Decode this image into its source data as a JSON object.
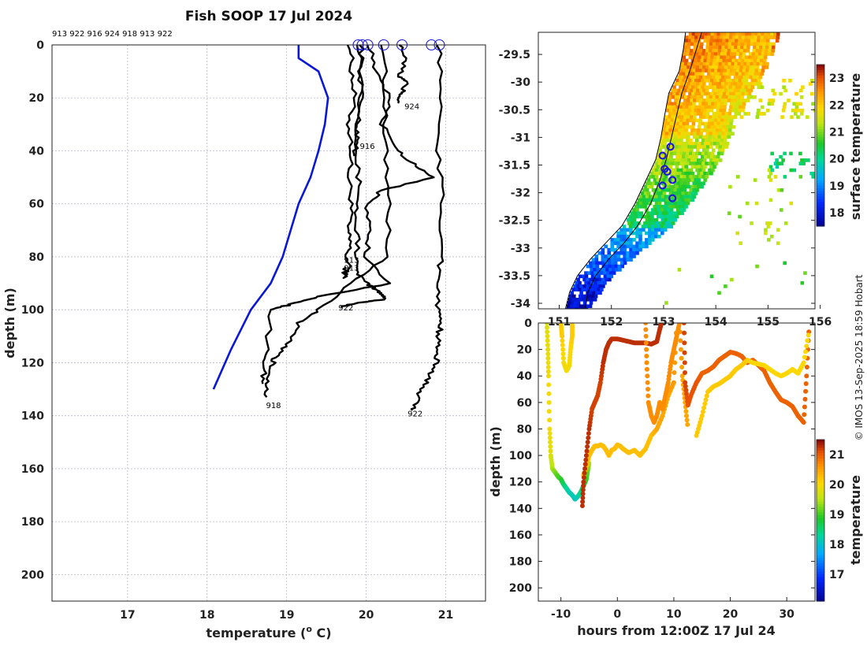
{
  "title": "Fish SOOP 17 Jul 2024",
  "credit": "© IMOS 13-Sep-2025 18:59 Hobart",
  "colors": {
    "clim": "#0a17d6",
    "profile": "#000000",
    "marker": "#1a1ad8",
    "coast": "#000000"
  },
  "chart_data": [
    {
      "id": "profiles",
      "type": "line",
      "xlabel": "temperature (",
      "xlabel_sup": "o",
      "xlabel_end": " C)",
      "ylabel": "depth (m)",
      "xlim": [
        16.05,
        21.5
      ],
      "ylim": [
        210,
        0
      ],
      "xticks": [
        "17",
        "18",
        "19",
        "20",
        "21"
      ],
      "yticks": [
        "0",
        "20",
        "40",
        "60",
        "80",
        "100",
        "120",
        "140",
        "160",
        "180",
        "200"
      ],
      "grid": true,
      "top_labels": "913 922 916 924 918 913 922",
      "climatology": {
        "temp": [
          19.15,
          19.15,
          19.4,
          19.52,
          19.48,
          19.4,
          19.3,
          19.15,
          19.05,
          18.95,
          18.8,
          18.55,
          18.3,
          18.08
        ],
        "depth": [
          0,
          5,
          10,
          20,
          30,
          40,
          50,
          60,
          70,
          80,
          90,
          100,
          115,
          130
        ]
      },
      "profiles": [
        {
          "id": "913",
          "temp": [
            19.8,
            19.82,
            19.85,
            19.78,
            19.82,
            19.78,
            19.82,
            19.76,
            19.8,
            19.75,
            19.78,
            19.72,
            19.75
          ],
          "depth": [
            0,
            10,
            20,
            30,
            40,
            50,
            60,
            70,
            75,
            80,
            85,
            88,
            84
          ]
        },
        {
          "id": "922",
          "temp": [
            19.92,
            19.95,
            19.9,
            19.88,
            19.92,
            19.86,
            19.9,
            19.86,
            20.0,
            20.1,
            20.2,
            20.25,
            20.0,
            19.8,
            19.68
          ],
          "depth": [
            0,
            15,
            30,
            45,
            55,
            65,
            75,
            85,
            90,
            92,
            94,
            96,
            97,
            98,
            99
          ]
        },
        {
          "id": "916",
          "temp": [
            19.95,
            19.92,
            19.95,
            19.88,
            19.9,
            19.85
          ],
          "depth": [
            0,
            10,
            20,
            30,
            36,
            42
          ]
        },
        {
          "id": "924",
          "temp": [
            20.45,
            20.48,
            20.42,
            20.5,
            20.45,
            20.42,
            20.4
          ],
          "depth": [
            0,
            6,
            12,
            14,
            18,
            20,
            22
          ]
        },
        {
          "id": "918",
          "temp": [
            20.22,
            20.24,
            20.25,
            20.28,
            20.27,
            19.8,
            19.4,
            19.15,
            19.0,
            18.85,
            18.8,
            18.76,
            18.75
          ],
          "depth": [
            0,
            20,
            40,
            60,
            80,
            90,
            100,
            105,
            113,
            118,
            122,
            127,
            133
          ]
        },
        {
          "id": "913",
          "temp": [
            20.05,
            20.1,
            20.3,
            20.2,
            20.4,
            20.6,
            20.85,
            20.2,
            20.0,
            20.05,
            20.0,
            20.3,
            19.4,
            19.05,
            18.8,
            18.75,
            18.72,
            18.7
          ],
          "depth": [
            0,
            10,
            20,
            30,
            40,
            45,
            50,
            55,
            60,
            70,
            80,
            90,
            95,
            98,
            100,
            115,
            122,
            128
          ]
        },
        {
          "id": "922",
          "temp": [
            20.92,
            20.93,
            20.91,
            20.95,
            20.94,
            20.92,
            20.9,
            20.95,
            20.9,
            20.9,
            20.88,
            20.8,
            20.7,
            20.62,
            20.58
          ],
          "depth": [
            0,
            20,
            40,
            60,
            80,
            90,
            100,
            105,
            110,
            115,
            120,
            125,
            130,
            135,
            138
          ]
        }
      ],
      "profile_labels": [
        {
          "text": "924",
          "temp": 20.48,
          "depth": 23
        },
        {
          "text": "916",
          "temp": 19.92,
          "depth": 38
        },
        {
          "text": "913",
          "temp": 19.72,
          "depth": 81
        },
        {
          "text": "913",
          "temp": 19.72,
          "depth": 84
        },
        {
          "text": "922",
          "temp": 19.65,
          "depth": 99
        },
        {
          "text": "918",
          "temp": 18.74,
          "depth": 136
        },
        {
          "text": "922",
          "temp": 20.52,
          "depth": 139
        }
      ],
      "surface_markers_temp": [
        19.9,
        19.95,
        20.02,
        20.22,
        20.45,
        20.82,
        20.92
      ]
    },
    {
      "id": "map",
      "type": "heatmap",
      "colorbar_label": "surface temperature",
      "clim": [
        17.5,
        23.5
      ],
      "colorbar_ticks": [
        "18",
        "19",
        "20",
        "21",
        "22",
        "23"
      ],
      "xticks": [
        "151",
        "152",
        "153",
        "154",
        "155",
        "156"
      ],
      "yticks": [
        "-29.5",
        "-30",
        "-30.5",
        "-31",
        "-31.5",
        "-32",
        "-32.5",
        "-33",
        "-33.5",
        "-34"
      ],
      "xlim": [
        150.6,
        155.9
      ],
      "ylim": [
        -34.1,
        -29.1
      ],
      "stations": [
        {
          "lon": 153.13,
          "lat": -31.17
        },
        {
          "lon": 152.98,
          "lat": -31.33
        },
        {
          "lon": 153.02,
          "lat": -31.57
        },
        {
          "lon": 153.07,
          "lat": -31.62
        },
        {
          "lon": 153.17,
          "lat": -31.77
        },
        {
          "lon": 152.98,
          "lat": -31.87
        },
        {
          "lon": 153.17,
          "lat": -32.1
        }
      ]
    },
    {
      "id": "section",
      "type": "scatter",
      "xlabel": "hours from 12:00Z 17 Jul 24",
      "ylabel": "depth (m)",
      "colorbar_label": "temperature",
      "clim": [
        16.1,
        21.5
      ],
      "colorbar_ticks": [
        "17",
        "18",
        "19",
        "20",
        "21"
      ],
      "xlim": [
        -14,
        35
      ],
      "ylim": [
        210,
        0
      ],
      "xticks": [
        "-10",
        "0",
        "10",
        "20",
        "30"
      ],
      "yticks": [
        "0",
        "20",
        "40",
        "60",
        "80",
        "100",
        "120",
        "140",
        "160",
        "180",
        "200"
      ],
      "tracks": [
        {
          "t": [
            -12.5,
            -12.3,
            -12.2,
            -12.0,
            -11.8,
            -11.5,
            -11.0,
            -10.5,
            -10.0,
            -9.5,
            -9.0,
            -8.5,
            -8.0,
            -7.5,
            -7.0,
            -6.5,
            -6.0,
            -5.5,
            -5.2,
            -5.0
          ],
          "d": [
            0,
            20,
            40,
            80,
            100,
            110,
            113,
            116,
            118,
            122,
            125,
            128,
            130,
            133,
            131,
            128,
            123,
            118,
            110,
            105
          ],
          "v": [
            19.8,
            19.9,
            20.0,
            20.0,
            19.8,
            19.5,
            19.3,
            19.1,
            19.0,
            18.6,
            18.4,
            18.2,
            18.2,
            18.1,
            18.2,
            18.4,
            18.7,
            19.0,
            19.2,
            19.5
          ]
        },
        {
          "t": [
            -10.0,
            -9.8,
            -9.5,
            -9.0,
            -8.5,
            -8.3,
            -8.0,
            -8.0
          ],
          "d": [
            0,
            10,
            30,
            36,
            32,
            20,
            10,
            0
          ],
          "v": [
            20.2,
            20.2,
            20.0,
            20.0,
            20.0,
            20.1,
            20.2,
            20.2
          ]
        },
        {
          "t": [
            -6.0,
            -5.5,
            -5.0,
            -4.5,
            -4.0,
            -3.5,
            -3.0,
            -2.5,
            -2.0,
            -1.5,
            -1.0,
            -0.5,
            0.0,
            0.5,
            1.0,
            2.0,
            3.0,
            4.0,
            5.0,
            6.0,
            7.0,
            8.0,
            9.0,
            10.0,
            10.5
          ],
          "d": [
            115,
            108,
            100,
            96,
            93,
            93,
            92,
            93,
            96,
            100,
            96,
            95,
            92,
            93,
            95,
            98,
            96,
            100,
            95,
            85,
            80,
            70,
            55,
            45,
            0
          ],
          "v": [
            20.3,
            20.3,
            20.3,
            20.3,
            20.3,
            20.3,
            20.3,
            20.3,
            20.3,
            20.3,
            20.3,
            20.3,
            20.3,
            20.3,
            20.3,
            20.3,
            20.3,
            20.3,
            20.3,
            20.3,
            20.5,
            20.5,
            20.5,
            20.6,
            20.6
          ]
        },
        {
          "t": [
            -6.2,
            -6.0,
            -5.5,
            -5.0,
            -4.5,
            -4.0,
            -3.5,
            -3.0,
            -2.5,
            -2.0,
            -1.5,
            -1.0,
            0.0,
            1.0,
            2.0,
            3.0,
            4.0,
            5.0,
            6.0,
            7.0,
            7.5,
            7.8
          ],
          "d": [
            138,
            120,
            100,
            80,
            65,
            60,
            55,
            45,
            30,
            20,
            15,
            12,
            12,
            13,
            14,
            15,
            15,
            15,
            16,
            14,
            5,
            0
          ],
          "v": [
            21.3,
            21.3,
            21.3,
            21.3,
            21.2,
            21.2,
            21.2,
            21.2,
            21.3,
            21.3,
            21.3,
            21.3,
            21.3,
            21.3,
            21.3,
            21.3,
            21.3,
            21.3,
            21.3,
            21.3,
            21.3,
            21.3
          ]
        },
        {
          "t": [
            5.0,
            5.2,
            5.5,
            6.0,
            6.5,
            7.0,
            7.5,
            8.0,
            8.5,
            9.0,
            9.5,
            10.0,
            10.5,
            11.0,
            11.5,
            12.0,
            12.5
          ],
          "d": [
            0,
            30,
            60,
            70,
            75,
            70,
            60,
            65,
            55,
            45,
            30,
            20,
            10,
            0,
            40,
            60,
            80
          ],
          "v": [
            20.7,
            20.7,
            20.7,
            20.7,
            20.7,
            20.7,
            20.7,
            20.7,
            20.7,
            20.7,
            20.7,
            20.7,
            20.7,
            20.7,
            20.5,
            20.5,
            20.5
          ]
        },
        {
          "t": [
            11.8,
            12.0,
            12.5,
            13.0,
            14.0,
            15.0,
            16.0,
            17.0,
            18.0,
            19.0,
            20.0,
            21.0,
            22.0,
            23.0,
            24.0,
            25.0,
            26.0,
            27.0,
            28.0,
            29.0,
            30.0,
            31.0,
            32.0,
            33.0,
            33.5,
            34.0
          ],
          "d": [
            0,
            45,
            62,
            55,
            45,
            38,
            36,
            33,
            28,
            25,
            22,
            23,
            25,
            30,
            28,
            32,
            36,
            45,
            52,
            58,
            60,
            63,
            70,
            75,
            40,
            0
          ],
          "v": [
            21.2,
            21.2,
            21.1,
            21.1,
            21.1,
            21.0,
            21.0,
            21.0,
            21.0,
            21.0,
            21.0,
            21.0,
            21.0,
            21.0,
            21.0,
            21.0,
            21.0,
            21.0,
            21.0,
            21.0,
            21.0,
            21.0,
            21.0,
            21.0,
            21.0,
            21.0
          ]
        },
        {
          "t": [
            14.0,
            15.0,
            16.0,
            17.0,
            18.0,
            19.0,
            20.0,
            21.0,
            22.0,
            23.0,
            24.0,
            25.0,
            26.0,
            27.0,
            28.0,
            29.0,
            30.0,
            31.0,
            32.0,
            33.0,
            34.0
          ],
          "d": [
            85,
            70,
            52,
            48,
            46,
            43,
            40,
            35,
            32,
            28,
            30,
            31,
            32,
            35,
            38,
            40,
            38,
            35,
            38,
            30,
            5
          ],
          "v": [
            20.2,
            20.2,
            20.2,
            20.2,
            20.2,
            20.2,
            20.2,
            20.2,
            20.2,
            20.2,
            20.1,
            20.1,
            20.1,
            20.1,
            20.1,
            20.1,
            20.1,
            20.1,
            20.1,
            20.1,
            20.1
          ]
        }
      ]
    }
  ]
}
